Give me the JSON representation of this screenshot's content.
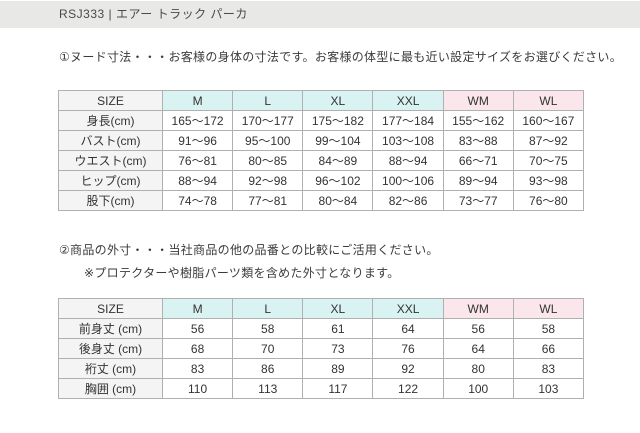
{
  "header": {
    "title": "RSJ333 | エアー トラック パーカ"
  },
  "sections": {
    "nude": {
      "description": "①ヌード寸法・・・お客様の身体の寸法です。お客様の体型に最も近い設定サイズをお選びください。"
    },
    "outer": {
      "description": "②商品の外寸・・・当社商品の他の品番との比較にご活用ください。",
      "note": "※プロテクターや樹脂パーツ類を含めた外寸となります。"
    }
  },
  "colors": {
    "size_cyan": "#d9f3f2",
    "size_pink": "#fbe7eb",
    "label_bg": "#f4f4f4",
    "border": "#b0b0b0",
    "topbar_bg": "#e8e8e6"
  },
  "tables": {
    "nude": {
      "corner_label": "SIZE",
      "columns": [
        {
          "label": "M",
          "group": "unisex"
        },
        {
          "label": "L",
          "group": "unisex"
        },
        {
          "label": "XL",
          "group": "unisex"
        },
        {
          "label": "XXL",
          "group": "unisex"
        },
        {
          "label": "WM",
          "group": "women"
        },
        {
          "label": "WL",
          "group": "women"
        }
      ],
      "rows": [
        {
          "label": "身長(cm)",
          "values": [
            "165～172",
            "170～177",
            "175～182",
            "177～184",
            "155～162",
            "160～167"
          ]
        },
        {
          "label": "バスト(cm)",
          "values": [
            "91～96",
            "95～100",
            "99～104",
            "103～108",
            "83～88",
            "87～92"
          ]
        },
        {
          "label": "ウエスト(cm)",
          "values": [
            "76～81",
            "80～85",
            "84～89",
            "88～94",
            "66～71",
            "70～75"
          ]
        },
        {
          "label": "ヒップ(cm)",
          "values": [
            "88～94",
            "92～98",
            "96～102",
            "100～106",
            "89～94",
            "93～98"
          ]
        },
        {
          "label": "股下(cm)",
          "values": [
            "74～78",
            "77～81",
            "80～84",
            "82～86",
            "73～77",
            "76～80"
          ]
        }
      ]
    },
    "outer": {
      "corner_label": "SIZE",
      "columns": [
        {
          "label": "M",
          "group": "unisex"
        },
        {
          "label": "L",
          "group": "unisex"
        },
        {
          "label": "XL",
          "group": "unisex"
        },
        {
          "label": "XXL",
          "group": "unisex"
        },
        {
          "label": "WM",
          "group": "women"
        },
        {
          "label": "WL",
          "group": "women"
        }
      ],
      "rows": [
        {
          "label": "前身丈 (cm)",
          "values": [
            "56",
            "58",
            "61",
            "64",
            "56",
            "58"
          ]
        },
        {
          "label": "後身丈 (cm)",
          "values": [
            "68",
            "70",
            "73",
            "76",
            "64",
            "66"
          ]
        },
        {
          "label": "裄丈 (cm)",
          "values": [
            "83",
            "86",
            "89",
            "92",
            "80",
            "83"
          ]
        },
        {
          "label": "胸囲 (cm)",
          "values": [
            "110",
            "113",
            "117",
            "122",
            "100",
            "103"
          ]
        }
      ]
    }
  }
}
